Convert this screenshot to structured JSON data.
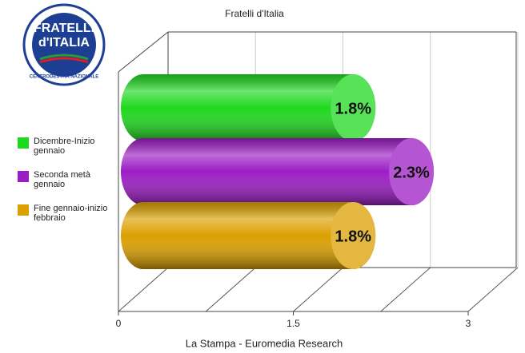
{
  "logo": {
    "line1": "FRATELLI",
    "line2": "d'ITALIA",
    "ring": "CENTRODESTRA NAZIONALE"
  },
  "chart_data": {
    "type": "bar",
    "orientation": "horizontal",
    "title": "Fratelli d'Italia",
    "xlabel": "La Stampa - Euromedia Research",
    "xlim": [
      0,
      3
    ],
    "xticks": [
      0,
      1.5,
      3
    ],
    "grid": true,
    "series": [
      {
        "name": "Dicembre-Inizio gennaio",
        "color": "#1fd81f",
        "values": [
          1.8
        ],
        "value_labels": [
          "1.8%"
        ]
      },
      {
        "name": "Seconda metà gennaio",
        "color": "#9c1cc4",
        "values": [
          2.3
        ],
        "value_labels": [
          "2.3%"
        ]
      },
      {
        "name": "Fine gennaio-inizio febbraio",
        "color": "#dba000",
        "values": [
          1.8
        ],
        "value_labels": [
          "1.8%"
        ]
      }
    ]
  }
}
